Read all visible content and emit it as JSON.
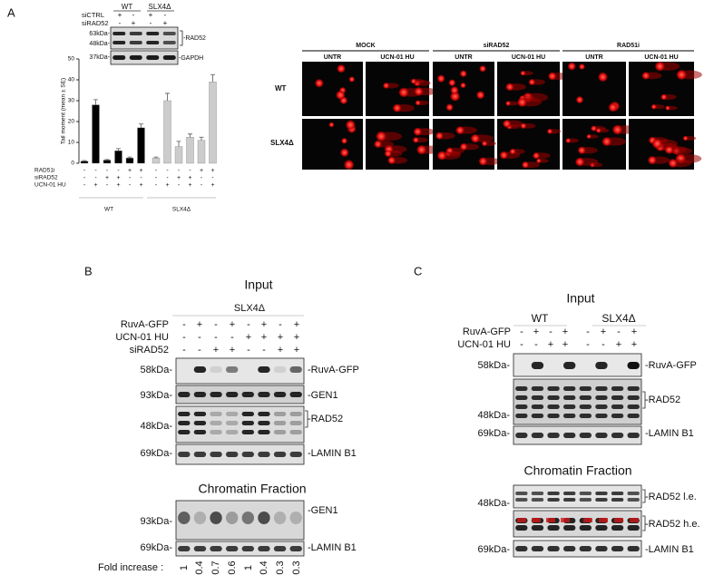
{
  "panel_a": {
    "label": "A",
    "blot": {
      "columns": [
        "WT",
        "SLX4Δ"
      ],
      "rows": [
        {
          "label": "siCTRL",
          "signs": [
            "+",
            "-",
            "+",
            "-"
          ]
        },
        {
          "label": "siRAD52",
          "signs": [
            "-",
            "+",
            "-",
            "+"
          ]
        }
      ],
      "markers": [
        "63kDa-",
        "48kDa-",
        "37kDa-"
      ],
      "bands": [
        "-RAD52",
        "-GAPDH"
      ]
    },
    "chart_data": {
      "type": "bar",
      "y_label": "Tail moment (mean ± SE)",
      "ylim": [
        0,
        50
      ],
      "yticks": [
        0,
        10,
        20,
        30,
        40,
        50
      ],
      "series": [
        {
          "name": "WT",
          "color": "#000000",
          "values": [
            1,
            28,
            1.5,
            6,
            2.5,
            17
          ],
          "errors": [
            0.3,
            2.5,
            0.3,
            1,
            0.5,
            1.8
          ]
        },
        {
          "name": "SLX4Δ",
          "color": "#cccccc",
          "values": [
            2.5,
            30,
            8,
            12.5,
            11,
            39
          ],
          "errors": [
            0.5,
            3.5,
            2.5,
            1.5,
            1.5,
            3.5
          ]
        }
      ],
      "conditions": [
        {
          "label": "RAD51i",
          "signs": [
            "-",
            "-",
            "-",
            "-",
            "+",
            "+",
            "-",
            "-",
            "-",
            "-",
            "+",
            "+"
          ]
        },
        {
          "label": "siRAD52",
          "signs": [
            "-",
            "-",
            "+",
            "+",
            "-",
            "-",
            "-",
            "-",
            "+",
            "+",
            "-",
            "-"
          ]
        },
        {
          "label": "UCN-01 HU",
          "signs": [
            "-",
            "+",
            "-",
            "+",
            "-",
            "+",
            "-",
            "+",
            "-",
            "+",
            "-",
            "+"
          ]
        }
      ]
    },
    "comet": {
      "groups": [
        "MOCK",
        "siRAD52",
        "RAD51i"
      ],
      "columns": [
        "UNTR",
        "UCN-01 HU",
        "UNTR",
        "UCN-01 HU",
        "UNTR",
        "UCN-01 HU"
      ],
      "rows": [
        "WT",
        "SLX4Δ"
      ]
    }
  },
  "panel_b": {
    "label": "B",
    "input_title": "Input",
    "group": "SLX4Δ",
    "rows": [
      {
        "label": "RuvA-GFP",
        "signs": [
          "-",
          "+",
          "-",
          "+",
          "-",
          "+",
          "-",
          "+"
        ]
      },
      {
        "label": "UCN-01 HU",
        "signs": [
          "-",
          "-",
          "-",
          "-",
          "+",
          "+",
          "+",
          "+"
        ]
      },
      {
        "label": "siRAD52",
        "signs": [
          "-",
          "-",
          "+",
          "+",
          "-",
          "-",
          "+",
          "+"
        ]
      }
    ],
    "input_markers": [
      "58kDa-",
      "93kDa-",
      "48kDa-",
      "69kDa-"
    ],
    "input_bands": [
      "-RuvA-GFP",
      "-GEN1",
      "-RAD52",
      "-LAMIN B1"
    ],
    "chromatin_title": "Chromatin Fraction",
    "chromatin_markers": [
      "93kDa-",
      "69kDa-"
    ],
    "chromatin_bands": [
      "-GEN1",
      "-LAMIN B1"
    ],
    "fold_label": "Fold increase :",
    "fold_values": [
      1,
      0.4,
      0.7,
      0.6,
      1,
      0.4,
      0.3,
      0.3
    ]
  },
  "panel_c": {
    "label": "C",
    "input_title": "Input",
    "groups": [
      "WT",
      "SLX4Δ"
    ],
    "rows": [
      {
        "label": "RuvA-GFP",
        "signs": [
          "-",
          "+",
          "-",
          "+",
          "-",
          "+",
          "-",
          "+"
        ]
      },
      {
        "label": "UCN-01 HU",
        "signs": [
          "-",
          "-",
          "+",
          "+",
          "-",
          "-",
          "+",
          "+"
        ]
      }
    ],
    "input_markers": [
      "58kDa-",
      "48kDa-",
      "69kDa-"
    ],
    "input_bands": [
      "-RuvA-GFP",
      "-RAD52",
      "-LAMIN B1"
    ],
    "chromatin_title": "Chromatin Fraction",
    "chromatin_markers": [
      "48kDa-",
      "69kDa-"
    ],
    "chromatin_bands": [
      "-RAD52 l.e.",
      "-RAD52 h.e.",
      "-LAMIN B1"
    ]
  }
}
